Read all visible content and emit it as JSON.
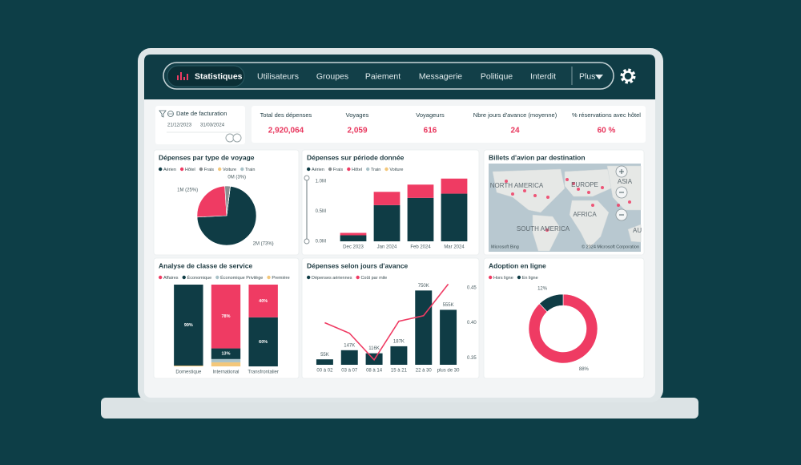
{
  "nav": {
    "items": [
      "Statistiques",
      "Utilisateurs",
      "Groupes",
      "Paiement",
      "Messagerie",
      "Politique",
      "Interdit"
    ],
    "more": "Plus"
  },
  "filter": {
    "label": "Date de facturation",
    "start": "21/12/2023",
    "end": "31/03/2024"
  },
  "kpis": [
    {
      "label": "Total des dépenses",
      "value": "2,920,064"
    },
    {
      "label": "Voyages",
      "value": "2,059"
    },
    {
      "label": "Voyageurs",
      "value": "616"
    },
    {
      "label": "Nbre jours d'avance (moyenne)",
      "value": "24"
    },
    {
      "label": "% réservations avec hôtel",
      "value": "60 %"
    }
  ],
  "chart_data": [
    {
      "type": "pie",
      "title": "Dépenses par type de voyage",
      "categories": [
        "Aérien",
        "Hôtel",
        "Frais",
        "Voiture",
        "Train"
      ],
      "values": [
        73,
        25,
        3,
        0,
        0
      ],
      "value_labels": [
        "2M (73%)",
        "1M (25%)",
        "0M (3%)",
        null,
        null
      ],
      "colors": [
        "#0f3c45",
        "#ef3b63",
        "#8a8f91",
        "#f3c77a",
        "#a9c2c8"
      ]
    },
    {
      "type": "bar",
      "stacked": true,
      "title": "Dépenses sur période donnée",
      "categories": [
        "Dec 2023",
        "Jan 2024",
        "Feb 2024",
        "Mar 2024"
      ],
      "series": [
        {
          "name": "Aérien",
          "color": "#0f3c45",
          "values": [
            0.1,
            0.6,
            0.72,
            0.79
          ]
        },
        {
          "name": "Frais",
          "color": "#8a8f91",
          "values": [
            0,
            0,
            0,
            0
          ]
        },
        {
          "name": "Hôtel",
          "color": "#ef3b63",
          "values": [
            0.04,
            0.22,
            0.22,
            0.25
          ]
        },
        {
          "name": "Train",
          "color": "#a9c2c8",
          "values": [
            0,
            0,
            0,
            0
          ]
        },
        {
          "name": "Voiture",
          "color": "#f3c77a",
          "values": [
            0,
            0,
            0,
            0
          ]
        }
      ],
      "ylim": [
        0,
        1.05
      ],
      "yticks": [
        {
          "value": 0,
          "label": "0.0M"
        },
        {
          "value": 0.5,
          "label": "0.5M"
        },
        {
          "value": 1,
          "label": "1.0M"
        }
      ]
    },
    {
      "type": "map",
      "title": "Billets d'avion par destination",
      "labels": [
        "NORTH AMERICA",
        "EUROPE",
        "ASIA",
        "AFRICA",
        "SOUTH AMERICA",
        "AU"
      ],
      "attribution": "© 2024 Microsoft Corporation",
      "provider": "Microsoft Bing"
    },
    {
      "type": "bar",
      "stacked": true,
      "title": "Analyse de classe de service",
      "categories": [
        "Domestique",
        "International",
        "Transfrontalier"
      ],
      "series": [
        {
          "name": "Affaires",
          "color": "#ef3b63",
          "values": [
            0,
            78,
            40
          ],
          "value_labels": [
            null,
            "78%",
            "40%"
          ]
        },
        {
          "name": "Économique",
          "color": "#0f3c45",
          "values": [
            99,
            13,
            60
          ],
          "value_labels": [
            "99%",
            "13%",
            "60%"
          ]
        },
        {
          "name": "Économique Privilège",
          "color": "#a9c2c8",
          "values": [
            0,
            4,
            0
          ]
        },
        {
          "name": "Première",
          "color": "#f3c77a",
          "values": [
            1,
            5,
            0
          ]
        }
      ],
      "ylim": [
        0,
        100
      ]
    },
    {
      "type": "combo",
      "title": "Dépenses selon jours d'avance",
      "categories": [
        "00 à 02",
        "03 à 07",
        "08 à 14",
        "15 à 21",
        "22 à 30",
        "plus de 30"
      ],
      "series": [
        {
          "name": "Dépenses aériennes",
          "color": "#0f3c45",
          "values": [
            55,
            147,
            116,
            187,
            750,
            555
          ],
          "value_labels": [
            "55K",
            "147K",
            "116K",
            "187K",
            "750K",
            "555K"
          ]
        },
        {
          "name": "Coût par mile",
          "color": "#ef3b63",
          "axis": "y2",
          "values": [
            0.4,
            0.385,
            0.347,
            0.402,
            0.41,
            0.455
          ]
        }
      ],
      "ylim": [
        0,
        850
      ],
      "y2lim": [
        0.34,
        0.46
      ],
      "y2ticks": [
        0.35,
        {
          "value": 0.4,
          "label": "0.40"
        },
        0.45
      ]
    },
    {
      "type": "pie",
      "donut": true,
      "title": "Adoption en ligne",
      "categories": [
        "Hors ligne",
        "En ligne"
      ],
      "values": [
        88,
        12
      ],
      "value_labels": [
        "88%",
        "12%"
      ],
      "colors": [
        "#ef3b63",
        "#0f3c45"
      ]
    }
  ]
}
